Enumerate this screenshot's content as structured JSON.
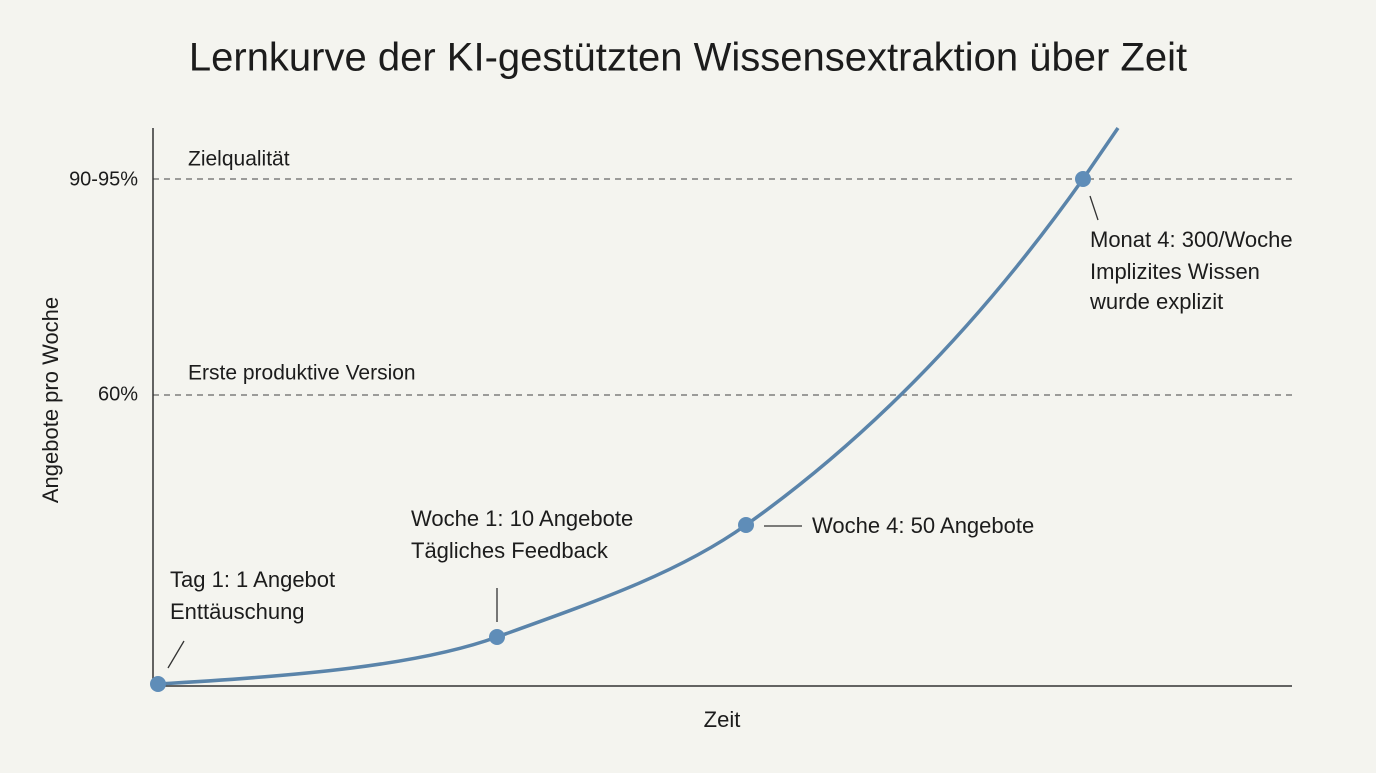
{
  "header": {
    "title": "Lernkurve der KI-gestützten Wissensextraktion über Zeit"
  },
  "axes": {
    "y_label": "Angebote pro Woche",
    "x_label": "Zeit",
    "y_ticks": [
      "90-95%",
      "60%"
    ]
  },
  "reference_lines": [
    {
      "label": "Zielqualität"
    },
    {
      "label": "Erste produktive Version"
    }
  ],
  "annotations": [
    {
      "lines": [
        "Tag 1: 1 Angebot",
        "Enttäuschung"
      ]
    },
    {
      "lines": [
        "Woche 1: 10 Angebote",
        "Tägliches Feedback"
      ]
    },
    {
      "lines": [
        "Woche 4: 50 Angebote"
      ]
    },
    {
      "lines": [
        "Monat 4: 300/Woche",
        "Implizites Wissen",
        "wurde explizit"
      ]
    }
  ]
}
